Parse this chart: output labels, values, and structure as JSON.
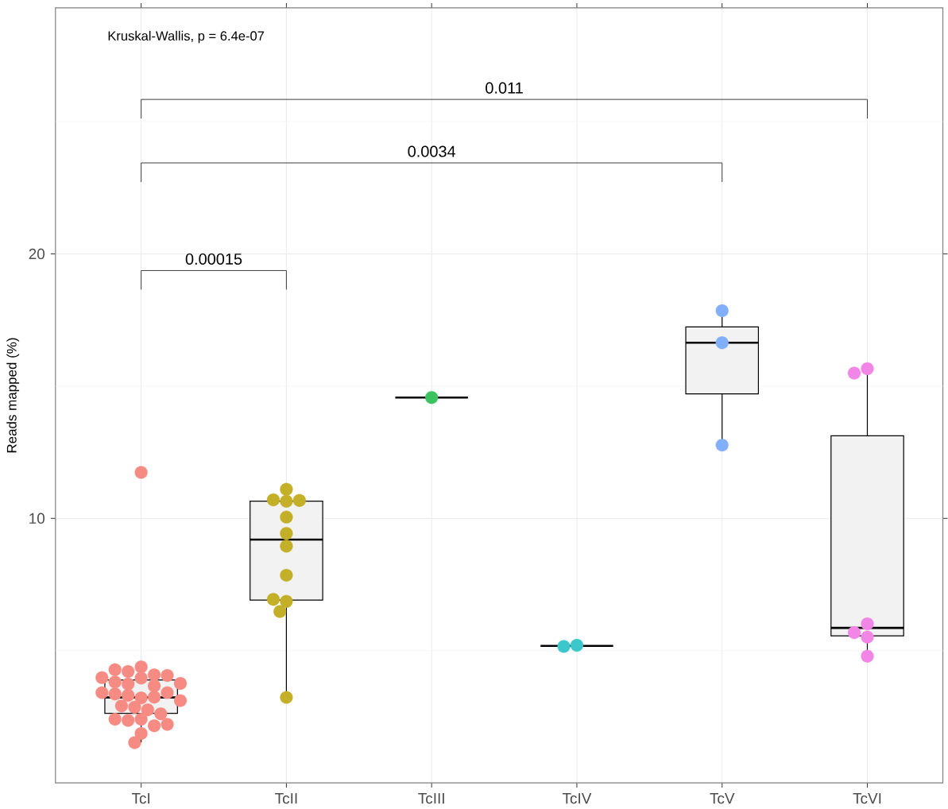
{
  "chart_data": {
    "type": "box",
    "ylabel": "Reads mapped (%)",
    "categories": [
      "TcI",
      "TcII",
      "TcIII",
      "TcIV",
      "TcV",
      "TcVI"
    ],
    "colors": [
      "#f2f2f2",
      "#f2f2f2",
      "#000000",
      "#000000",
      "#f2f2f2",
      "#f2f2f2"
    ],
    "boxes": [
      {
        "low": 1.53,
        "q1": 2.63,
        "median": 3.23,
        "q3": 3.89,
        "high": 4.37
      },
      {
        "low": 3.26,
        "q1": 6.91,
        "median": 9.2,
        "q3": 10.65,
        "high": 11.07
      },
      {
        "low": 14.57,
        "q1": 14.57,
        "median": 14.57,
        "q3": 14.57,
        "high": 14.57
      },
      {
        "low": 5.18,
        "q1": 5.18,
        "median": 5.18,
        "q3": 5.18,
        "high": 5.18
      },
      {
        "low": 12.79,
        "q1": 14.71,
        "median": 16.64,
        "q3": 17.24,
        "high": 17.83
      },
      {
        "low": 4.78,
        "q1": 5.56,
        "median": 5.86,
        "q3": 13.12,
        "high": 15.62
      }
    ],
    "series": [
      {
        "type": "scatter",
        "color": "#f68b84",
        "x": [
          "TcI",
          "TcI",
          "TcI",
          "TcI",
          "TcI",
          "TcI",
          "TcI",
          "TcI",
          "TcI",
          "TcI",
          "TcI",
          "TcI",
          "TcI",
          "TcI",
          "TcI",
          "TcI",
          "TcI",
          "TcI",
          "TcI",
          "TcI",
          "TcI",
          "TcI",
          "TcI",
          "TcI",
          "TcI",
          "TcI",
          "TcI",
          "TcI",
          "TcI",
          "TcI"
        ],
        "values": [
          4.38,
          4.21,
          4.08,
          4.28,
          3.96,
          4.06,
          3.98,
          3.74,
          3.66,
          3.81,
          3.76,
          3.21,
          3.31,
          3.36,
          3.41,
          3.41,
          3.24,
          3.11,
          2.91,
          2.86,
          2.76,
          2.61,
          2.41,
          2.36,
          2.41,
          2.16,
          2.21,
          1.87,
          1.52,
          11.74
        ]
      },
      {
        "type": "scatter",
        "color": "#c4b028",
        "x": [
          "TcII",
          "TcII",
          "TcII",
          "TcII",
          "TcII",
          "TcII",
          "TcII",
          "TcII",
          "TcII",
          "TcII",
          "TcII",
          "TcII"
        ],
        "values": [
          11.1,
          10.65,
          10.7,
          10.68,
          10.05,
          9.43,
          8.95,
          7.85,
          6.86,
          6.94,
          6.48,
          3.23
        ]
      },
      {
        "type": "scatter",
        "color": "#3cc35f",
        "x": [
          "TcIII"
        ],
        "values": [
          14.57
        ]
      },
      {
        "type": "scatter",
        "color": "#3cc8cb",
        "x": [
          "TcIV",
          "TcIV"
        ],
        "values": [
          5.2,
          5.16
        ]
      },
      {
        "type": "scatter",
        "color": "#82affc",
        "x": [
          "TcV",
          "TcV",
          "TcV"
        ],
        "values": [
          17.85,
          16.64,
          12.77
        ]
      },
      {
        "type": "scatter",
        "color": "#f286e6",
        "x": [
          "TcVI",
          "TcVI",
          "TcVI",
          "TcVI",
          "TcVI",
          "TcVI"
        ],
        "values": [
          15.66,
          15.49,
          6.01,
          5.68,
          5.51,
          4.79
        ]
      }
    ],
    "ylim": [
      0,
      29.3
    ],
    "yticks": [
      {
        "value": 5,
        "label": null
      },
      10,
      {
        "value": 15,
        "label": null
      },
      20,
      {
        "value": 25,
        "label": null
      }
    ],
    "grid": true,
    "marker": "circle",
    "annotations": [
      "Kruskal-Wallis, p = 6.4e-07",
      "0.00015",
      "0.0034",
      "0.011"
    ]
  }
}
